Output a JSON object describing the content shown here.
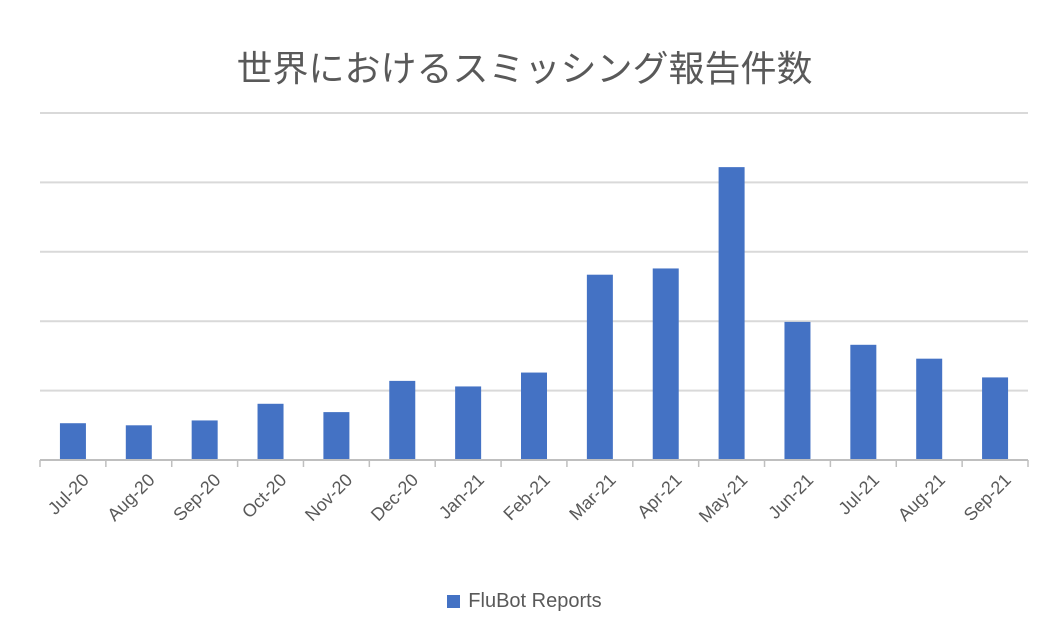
{
  "chart_data": {
    "type": "bar",
    "title": "世界におけるスミッシング報告件数",
    "categories": [
      "Jul-20",
      "Aug-20",
      "Sep-20",
      "Oct-20",
      "Nov-20",
      "Dec-20",
      "Jan-21",
      "Feb-21",
      "Mar-21",
      "Apr-21",
      "May-21",
      "Jun-21",
      "Jul-21",
      "Aug-21",
      "Sep-21"
    ],
    "series": [
      {
        "name": "FluBot Reports",
        "values": [
          0.53,
          0.5,
          0.57,
          0.81,
          0.69,
          1.14,
          1.06,
          1.26,
          2.67,
          2.76,
          4.22,
          1.99,
          1.66,
          1.46,
          1.19
        ],
        "color": "#4472C4"
      }
    ],
    "ylim": [
      0,
      5
    ],
    "gridlines": [
      1,
      2,
      3,
      4,
      5
    ],
    "grid": true,
    "y_tick_labels_visible": false,
    "legend": "bottom",
    "colors": {
      "bar": "#4472C4",
      "grid": "#D9D9D9",
      "axis": "#BFBFBF",
      "text": "#595959"
    }
  }
}
